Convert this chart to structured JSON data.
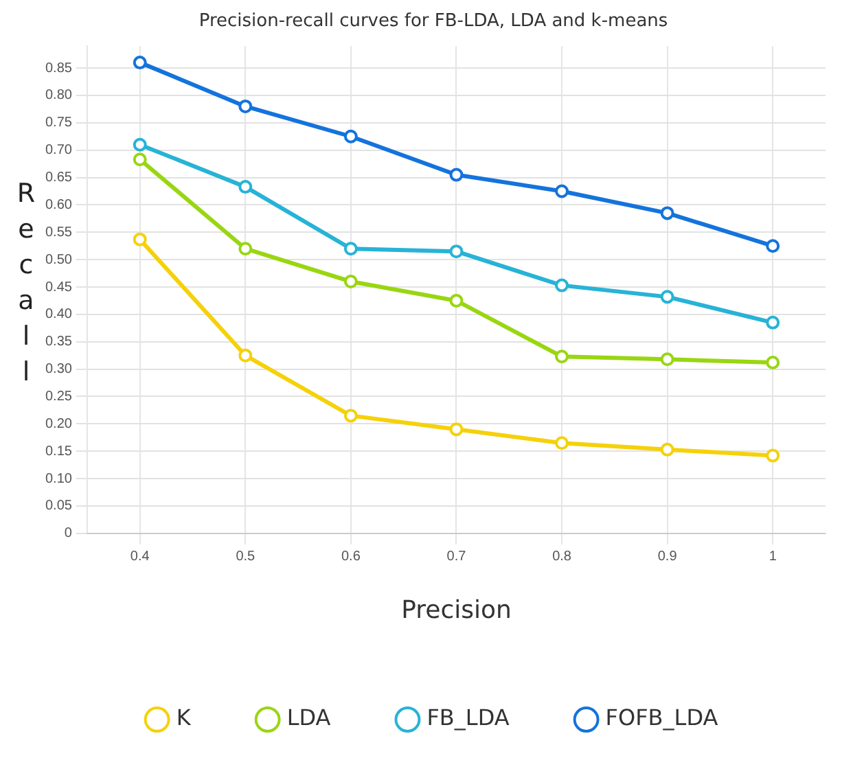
{
  "chart_data": {
    "type": "line",
    "title": "Precision-recall curves for FB-LDA, LDA and k-means",
    "xlabel": "Precision",
    "ylabel": "Recall",
    "categories": [
      "0.4",
      "0.5",
      "0.6",
      "0.7",
      "0.8",
      "0.9",
      "1"
    ],
    "ylim": [
      0,
      0.89
    ],
    "yticks": [
      0,
      {
        "value": 0.05,
        "label": "0.05"
      },
      {
        "value": 0.1,
        "label": "0.10"
      },
      {
        "value": 0.15,
        "label": "0.15"
      },
      {
        "value": 0.2,
        "label": "0.20"
      },
      {
        "value": 0.25,
        "label": "0.25"
      },
      {
        "value": 0.3,
        "label": "0.30"
      },
      {
        "value": 0.35,
        "label": "0.35"
      },
      {
        "value": 0.4,
        "label": "0.40"
      },
      {
        "value": 0.45,
        "label": "0.45"
      },
      {
        "value": 0.5,
        "label": "0.50"
      },
      {
        "value": 0.55,
        "label": "0.55"
      },
      {
        "value": 0.6,
        "label": "0.60"
      },
      {
        "value": 0.65,
        "label": "0.65"
      },
      {
        "value": 0.7,
        "label": "0.70"
      },
      {
        "value": 0.75,
        "label": "0.75"
      },
      {
        "value": 0.8,
        "label": "0.80"
      },
      {
        "value": 0.85,
        "label": "0.85"
      }
    ],
    "grid": true,
    "legend": "bottom",
    "marker": "circle",
    "line_style": "solid",
    "series": [
      {
        "name": "K",
        "color": "#f5d10a",
        "values": [
          0.537,
          0.325,
          0.215,
          0.19,
          0.165,
          0.153,
          0.142
        ]
      },
      {
        "name": "LDA",
        "color": "#99d612",
        "values": [
          0.683,
          0.52,
          0.46,
          0.425,
          0.323,
          0.318,
          0.312
        ]
      },
      {
        "name": "FB_LDA",
        "color": "#27b3d6",
        "values": [
          0.71,
          0.633,
          0.52,
          0.515,
          0.453,
          0.432,
          0.385
        ]
      },
      {
        "name": "FOFB_LDA",
        "color": "#1473dc",
        "values": [
          0.86,
          0.78,
          0.725,
          0.655,
          0.625,
          0.585,
          0.525
        ]
      }
    ]
  }
}
